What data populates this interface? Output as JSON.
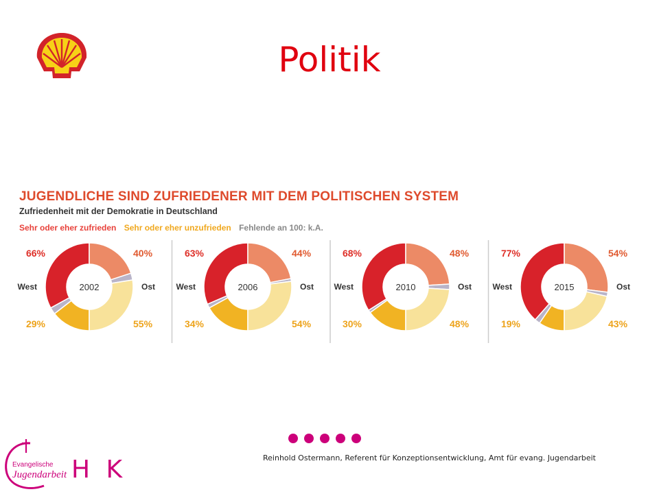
{
  "slide": {
    "title": "Politik"
  },
  "chart_data": {
    "type": "pie",
    "title": "JUGENDLICHE SIND ZUFRIEDENER MIT DEM POLITISCHEN SYSTEM",
    "subtitle": "Zufriedenheit mit der Demokratie in Deutschland",
    "legend": [
      {
        "label": "Sehr oder eher zufrieden",
        "color": "#e8413a"
      },
      {
        "label": "Sehr oder eher unzufrieden",
        "color": "#f5b526"
      },
      {
        "label": "Fehlende an 100: k.A.",
        "color": "#888888"
      }
    ],
    "side_labels": {
      "west": "West",
      "ost": "Ost"
    },
    "charts": [
      {
        "year": "2002",
        "west": {
          "zufrieden": 66,
          "unzufrieden": 29
        },
        "ost": {
          "zufrieden": 40,
          "unzufrieden": 55
        },
        "labels": {
          "west_zufrieden": "66%",
          "west_unzufrieden": "29%",
          "ost_zufrieden": "40%",
          "ost_unzufrieden": "55%"
        }
      },
      {
        "year": "2006",
        "west": {
          "zufrieden": 63,
          "unzufrieden": 34
        },
        "ost": {
          "zufrieden": 44,
          "unzufrieden": 54
        },
        "labels": {
          "west_zufrieden": "63%",
          "west_unzufrieden": "34%",
          "ost_zufrieden": "44%",
          "ost_unzufrieden": "54%"
        }
      },
      {
        "year": "2010",
        "west": {
          "zufrieden": 68,
          "unzufrieden": 30
        },
        "ost": {
          "zufrieden": 48,
          "unzufrieden": 48
        },
        "labels": {
          "west_zufrieden": "68%",
          "west_unzufrieden": "30%",
          "ost_zufrieden": "48%",
          "ost_unzufrieden": "48%"
        }
      },
      {
        "year": "2015",
        "west": {
          "zufrieden": 77,
          "unzufrieden": 19
        },
        "ost": {
          "zufrieden": 54,
          "unzufrieden": 43
        },
        "labels": {
          "west_zufrieden": "77%",
          "west_unzufrieden": "19%",
          "ost_zufrieden": "54%",
          "ost_unzufrieden": "43%"
        }
      }
    ],
    "colors": {
      "west_zufrieden": "#d8222a",
      "west_unzufrieden": "#f1b323",
      "ost_zufrieden": "#ec8a66",
      "ost_unzufrieden": "#f8e29a",
      "ka": "#b9b4c8",
      "label_red": "#de2f28",
      "label_orange": "#e05a30",
      "label_yellow": "#eda31b",
      "separator": "#cccccc"
    }
  },
  "footer": {
    "credit": "Reinhold Ostermann, Referent für Konzeptionsentwicklung,  Amt für evang. Jugendarbeit",
    "logo_text_top": "Evangelische",
    "logo_text_bottom": "Jugendarbeit",
    "hk": "H K",
    "dot_count": 5
  },
  "colors": {
    "title": "#e0000f",
    "accent": "#cc007a"
  }
}
